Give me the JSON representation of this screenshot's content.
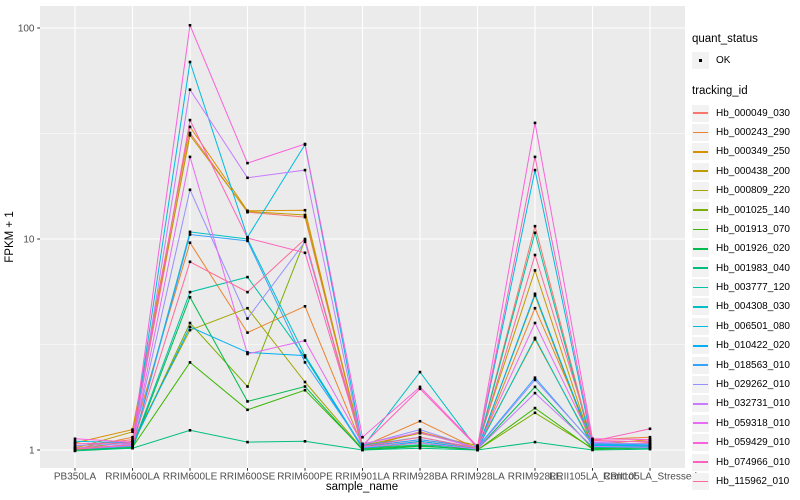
{
  "figure": {
    "panel_bg": "#EBEBEB",
    "grid_color": "#FFFFFF",
    "tick_color": "#333333",
    "tick_label_color": "#4D4D4D",
    "point_color": "#000000"
  },
  "chart_data": {
    "type": "line",
    "title": "",
    "xlabel": "sample_name",
    "ylabel": "FPKM + 1",
    "y_scale": "log10",
    "y_ticks": [
      1,
      10,
      100
    ],
    "ylim": [
      0.93,
      128
    ],
    "grid": true,
    "legend_position": "right",
    "point_shape_legend": {
      "title": "quant_status",
      "items": [
        "OK"
      ]
    },
    "legend": {
      "quant_title": "quant_status",
      "quant_items": [
        "OK"
      ],
      "series_title": "tracking_id"
    },
    "categories": [
      "PB350LA",
      "RRIM600LA",
      "RRIM600LE",
      "RRIM600SE",
      "RRIM600PE",
      "RRIM901LA",
      "RRIM928BA",
      "RRIM928LA",
      "RRIM928LE",
      "RRII105LA_Control",
      "RRII105LA_Stressed"
    ],
    "series": [
      {
        "name": "Hb_000049_030",
        "color": "#F8766D",
        "values": [
          1.04,
          1.12,
          31.8,
          13.4,
          12.7,
          1.03,
          1.12,
          1.02,
          11.5,
          1.05,
          1.08
        ]
      },
      {
        "name": "Hb_000243_290",
        "color": "#EA8331",
        "values": [
          1.01,
          1.15,
          9.6,
          3.6,
          4.8,
          1.04,
          1.37,
          1.01,
          4.7,
          1.12,
          1.15
        ]
      },
      {
        "name": "Hb_000349_250",
        "color": "#D89000",
        "values": [
          1.08,
          1.25,
          34.0,
          13.6,
          13.7,
          1.02,
          1.22,
          1.03,
          3.35,
          1.06,
          1.12
        ]
      },
      {
        "name": "Hb_000438_200",
        "color": "#C09B00",
        "values": [
          1.02,
          1.22,
          31.0,
          13.5,
          13.0,
          1.05,
          1.2,
          1.05,
          7.1,
          1.04,
          1.06
        ]
      },
      {
        "name": "Hb_000809_220",
        "color": "#A3A500",
        "values": [
          1.01,
          1.1,
          3.7,
          4.7,
          2.1,
          1.01,
          1.1,
          1.01,
          5.4,
          1.03,
          1.05
        ]
      },
      {
        "name": "Hb_001025_140",
        "color": "#7CAE00",
        "values": [
          1.0,
          1.05,
          4.0,
          2.0,
          9.9,
          1.02,
          1.08,
          1.0,
          1.5,
          1.02,
          1.04
        ]
      },
      {
        "name": "Hb_001913_070",
        "color": "#39B600",
        "values": [
          1.0,
          1.03,
          2.6,
          1.55,
          1.92,
          1.01,
          1.05,
          1.0,
          1.58,
          1.01,
          1.02
        ]
      },
      {
        "name": "Hb_001926_020",
        "color": "#00BB4E",
        "values": [
          1.01,
          1.02,
          5.3,
          1.7,
          2.0,
          1.0,
          1.04,
          1.01,
          1.99,
          1.02,
          1.03
        ]
      },
      {
        "name": "Hb_001983_040",
        "color": "#00BF7D",
        "values": [
          0.99,
          1.02,
          1.24,
          1.09,
          1.1,
          1.0,
          1.02,
          1.0,
          1.09,
          1.0,
          1.01
        ]
      },
      {
        "name": "Hb_003777_120",
        "color": "#00C1A3",
        "values": [
          1.02,
          1.04,
          5.6,
          6.6,
          2.75,
          1.02,
          1.06,
          1.02,
          10.7,
          1.03,
          1.02
        ]
      },
      {
        "name": "Hb_004308_030",
        "color": "#00BFC4",
        "values": [
          1.01,
          1.05,
          10.8,
          10.0,
          2.8,
          1.03,
          2.34,
          1.01,
          3.4,
          1.04,
          1.03
        ]
      },
      {
        "name": "Hb_006501_080",
        "color": "#00BAE0",
        "values": [
          1.1,
          1.08,
          69.0,
          10.2,
          28.0,
          1.05,
          1.15,
          1.02,
          21.2,
          1.06,
          1.05
        ]
      },
      {
        "name": "Hb_010422_020",
        "color": "#00B0F6",
        "values": [
          1.02,
          1.06,
          3.83,
          2.9,
          2.8,
          1.02,
          1.1,
          1.01,
          5.5,
          1.05,
          1.04
        ]
      },
      {
        "name": "Hb_018563_010",
        "color": "#35A2FF",
        "values": [
          1.01,
          1.04,
          10.5,
          9.8,
          2.6,
          1.04,
          1.12,
          1.03,
          2.2,
          1.07,
          1.06
        ]
      },
      {
        "name": "Hb_029262_010",
        "color": "#9590FF",
        "values": [
          1.05,
          1.07,
          17.1,
          4.2,
          9.7,
          1.06,
          1.25,
          1.02,
          2.15,
          1.08,
          1.07
        ]
      },
      {
        "name": "Hb_032731_010",
        "color": "#C77CFF",
        "values": [
          1.01,
          1.05,
          51.0,
          19.5,
          21.2,
          1.03,
          1.08,
          1.01,
          1.86,
          1.04,
          1.03
        ]
      },
      {
        "name": "Hb_059318_010",
        "color": "#E76BF3",
        "values": [
          1.02,
          1.06,
          24.5,
          2.85,
          3.3,
          1.07,
          1.21,
          1.02,
          4.0,
          1.09,
          1.1
        ]
      },
      {
        "name": "Hb_059429_010",
        "color": "#FA62DB",
        "values": [
          1.13,
          1.09,
          103.0,
          22.9,
          28.2,
          1.15,
          1.99,
          1.04,
          35.5,
          1.13,
          1.12
        ]
      },
      {
        "name": "Hb_074966_010",
        "color": "#FF62BC",
        "values": [
          1.07,
          1.08,
          36.6,
          10.1,
          8.6,
          1.05,
          1.95,
          1.03,
          24.5,
          1.1,
          1.26
        ]
      },
      {
        "name": "Hb_115962_010",
        "color": "#FF6A98",
        "values": [
          1.01,
          1.06,
          7.8,
          5.6,
          10.0,
          1.04,
          1.15,
          1.02,
          8.4,
          1.11,
          1.09
        ]
      }
    ]
  }
}
